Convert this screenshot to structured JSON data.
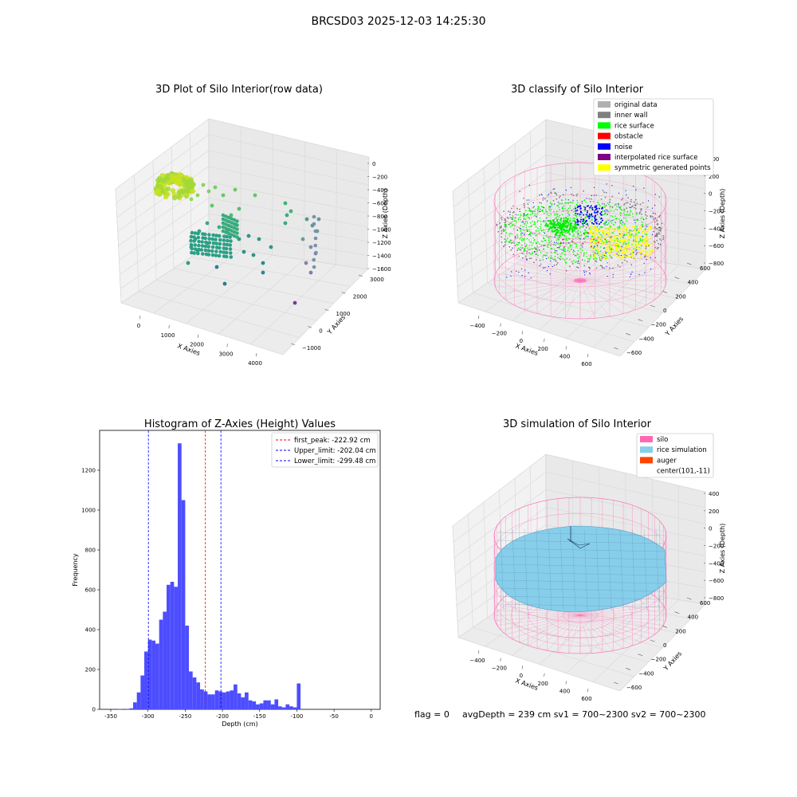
{
  "suptitle": "BRCSD03 2025-12-03 14:25:30",
  "colors": {
    "background": "#ffffff",
    "pane": "#f2f2f2",
    "grid": "#d8d8d8",
    "hist_bar": "#4d4dff",
    "peak_line": "#ff0000",
    "limit_line": "#0000ff",
    "silo": "#ff69b4",
    "rice_simulation": "#87ceeb",
    "auger": "#ff4500",
    "original_data": "#b0b0b0",
    "inner_wall": "#808080",
    "rice_surface": "#00ff00",
    "obstacle": "#ff0000",
    "noise": "#0000ff",
    "interpolated_rice_surface": "#800080",
    "symmetric_generated_points": "#ffff00"
  },
  "panel_raw": {
    "title": "3D Plot of Silo Interior(row data)",
    "xlabel": "X Axies",
    "ylabel": "Y Axies",
    "zlabel": "Z Axies (Depth)",
    "xticks": [
      "0",
      "1000",
      "2000",
      "3000",
      "4000"
    ],
    "yticks": [
      "−1000",
      "0",
      "1000",
      "2000",
      "3000"
    ],
    "zticks": [
      "0",
      "−200",
      "−400",
      "−600",
      "−800",
      "−1000",
      "−1200",
      "−1400",
      "−1600"
    ]
  },
  "panel_classify": {
    "title": "3D classify of Silo Interior",
    "xlabel": "X Axies",
    "ylabel": "Y Axies",
    "zlabel": "Z Axies (Depth)",
    "xticks": [
      "−400",
      "−200",
      "0",
      "200",
      "400",
      "600"
    ],
    "yticks": [
      "−600",
      "−400",
      "−200",
      "0",
      "200",
      "400",
      "600"
    ],
    "zticks": [
      "400",
      "200",
      "0",
      "−200",
      "−400",
      "−600",
      "−800"
    ],
    "legend": [
      {
        "label": "original data",
        "color": "#b0b0b0"
      },
      {
        "label": "inner wall",
        "color": "#808080"
      },
      {
        "label": "rice surface",
        "color": "#00ff00"
      },
      {
        "label": "obstacle",
        "color": "#ff0000"
      },
      {
        "label": "noise",
        "color": "#0000ff"
      },
      {
        "label": "interpolated rice surface",
        "color": "#800080"
      },
      {
        "label": "symmetric generated points",
        "color": "#ffff00"
      }
    ]
  },
  "panel_sim": {
    "title": "3D simulation of Silo Interior",
    "xlabel": "X Axies",
    "ylabel": "Y Axies",
    "zlabel": "Z Axies (Depth)",
    "xticks": [
      "−400",
      "−200",
      "0",
      "200",
      "400",
      "600"
    ],
    "yticks": [
      "−600",
      "−400",
      "−200",
      "0",
      "200",
      "400",
      "600"
    ],
    "zticks": [
      "400",
      "200",
      "0",
      "−200",
      "−400",
      "−600",
      "−800"
    ],
    "legend": [
      {
        "label": "silo",
        "color": "#ff69b4"
      },
      {
        "label": "rice simulation",
        "color": "#87ceeb"
      },
      {
        "label": "auger",
        "color": "#ff4500"
      },
      {
        "label": "center(101,-11)",
        "color": ""
      }
    ]
  },
  "bottom_text": {
    "flag": "flag = 0",
    "stats": "avgDepth = 239 cm  sv1 = 700~2300  sv2 = 700~2300"
  },
  "chart_data": [
    {
      "type": "scatter",
      "title": "3D Plot of Silo Interior(row data)",
      "xlabel": "X Axies",
      "ylabel": "Y Axies",
      "zlabel": "Z Axies (Depth)",
      "xlim": [
        -500,
        4700
      ],
      "ylim": [
        -1500,
        3200
      ],
      "zlim": [
        -1700,
        100
      ],
      "grid": true
    },
    {
      "type": "scatter",
      "title": "3D classify of Silo Interior",
      "xlabel": "X Axies",
      "ylabel": "Y Axies",
      "zlabel": "Z Axies (Depth)",
      "xlim": [
        -500,
        700
      ],
      "ylim": [
        -700,
        700
      ],
      "zlim": [
        -900,
        500
      ],
      "legend_position": "top-right",
      "series": [
        {
          "name": "original data"
        },
        {
          "name": "inner wall"
        },
        {
          "name": "rice surface"
        },
        {
          "name": "obstacle"
        },
        {
          "name": "noise"
        },
        {
          "name": "interpolated rice surface"
        },
        {
          "name": "symmetric generated points"
        }
      ],
      "grid": true
    },
    {
      "type": "bar",
      "title": "Histogram of Z-Axies (Height) Values",
      "xlabel": "Depth (cm)",
      "ylabel": "Frequency",
      "xlim": [
        -365,
        12
      ],
      "ylim": [
        0,
        1400
      ],
      "xticks": [
        -350,
        -300,
        -250,
        -200,
        -150,
        -100,
        -50,
        0
      ],
      "yticks": [
        0,
        200,
        400,
        600,
        800,
        1000,
        1200
      ],
      "bin_edges_start": -345,
      "bin_width": 5,
      "values": [
        0,
        2,
        0,
        1,
        5,
        35,
        85,
        170,
        290,
        350,
        345,
        330,
        450,
        490,
        625,
        640,
        615,
        1335,
        1050,
        420,
        190,
        160,
        135,
        100,
        90,
        75,
        75,
        95,
        90,
        85,
        90,
        95,
        125,
        80,
        60,
        85,
        45,
        40,
        25,
        30,
        45,
        45,
        25,
        50,
        15,
        10,
        25,
        15,
        10,
        130
      ],
      "lines": [
        {
          "label": "first_peak: -222.92 cm",
          "x": -222.92,
          "color": "#ff0000"
        },
        {
          "label": "Upper_limit: -202.04 cm",
          "x": -202.04,
          "color": "#0000ff"
        },
        {
          "label": "Lower_limit: -299.48 cm",
          "x": -299.48,
          "color": "#0000ff"
        }
      ],
      "legend_position": "top-right"
    },
    {
      "type": "scatter",
      "title": "3D simulation of Silo Interior",
      "xlabel": "X Axies",
      "ylabel": "Y Axies",
      "zlabel": "Z Axies (Depth)",
      "xlim": [
        -500,
        700
      ],
      "ylim": [
        -700,
        700
      ],
      "zlim": [
        -900,
        500
      ],
      "series": [
        {
          "name": "silo"
        },
        {
          "name": "rice simulation"
        },
        {
          "name": "auger"
        },
        {
          "name": "center(101,-11)"
        }
      ],
      "legend_position": "top-right",
      "grid": true
    }
  ]
}
